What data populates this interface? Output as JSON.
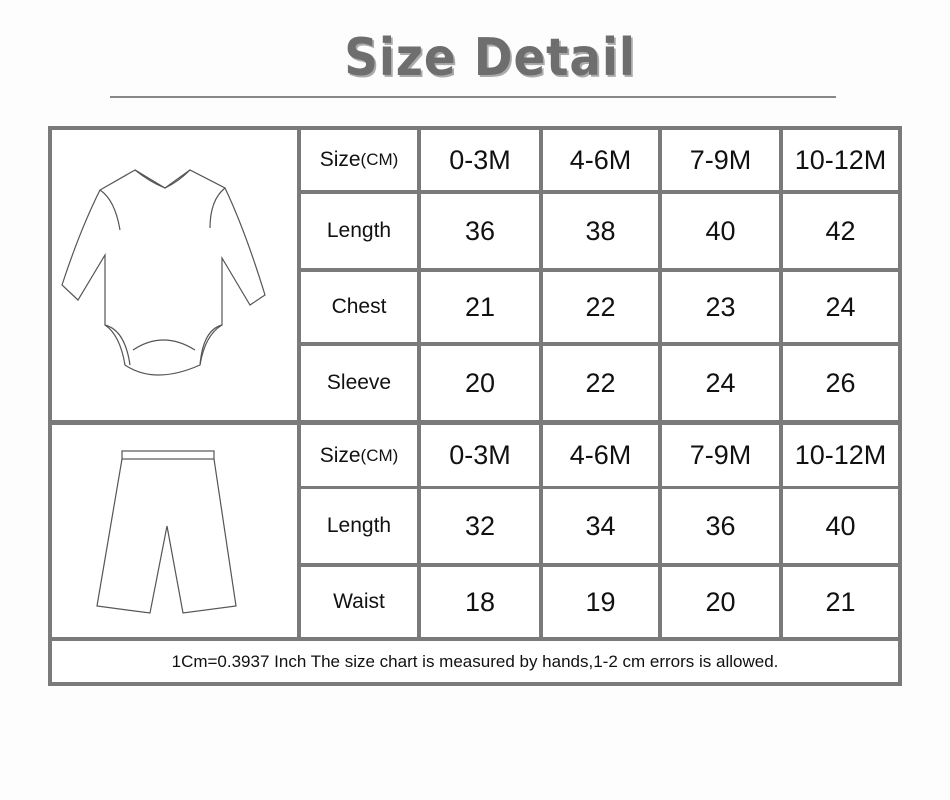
{
  "title": "Size Detail",
  "top_table": {
    "header": {
      "label": "Size",
      "unit": "(CM)",
      "sizes": [
        "0-3M",
        "4-6M",
        "7-9M",
        "10-12M"
      ]
    },
    "rows": [
      {
        "label": "Length",
        "values": [
          "36",
          "38",
          "40",
          "42"
        ]
      },
      {
        "label": "Chest",
        "values": [
          "21",
          "22",
          "23",
          "24"
        ]
      },
      {
        "label": "Sleeve",
        "values": [
          "20",
          "22",
          "24",
          "26"
        ]
      }
    ]
  },
  "bottom_table": {
    "header": {
      "label": "Size",
      "unit": "(CM)",
      "sizes": [
        "0-3M",
        "4-6M",
        "7-9M",
        "10-12M"
      ]
    },
    "rows": [
      {
        "label": "Length",
        "values": [
          "32",
          "34",
          "36",
          "40"
        ]
      },
      {
        "label": "Waist",
        "values": [
          "18",
          "19",
          "20",
          "21"
        ]
      }
    ]
  },
  "footer_note": "1Cm=0.3937 Inch The size chart is measured by hands,1-2 cm errors is allowed.",
  "images": {
    "top": "bodysuit-illustration",
    "bottom": "pants-illustration"
  },
  "colors": {
    "grid": "#7a7a7a",
    "title": "#6e6e6e"
  }
}
